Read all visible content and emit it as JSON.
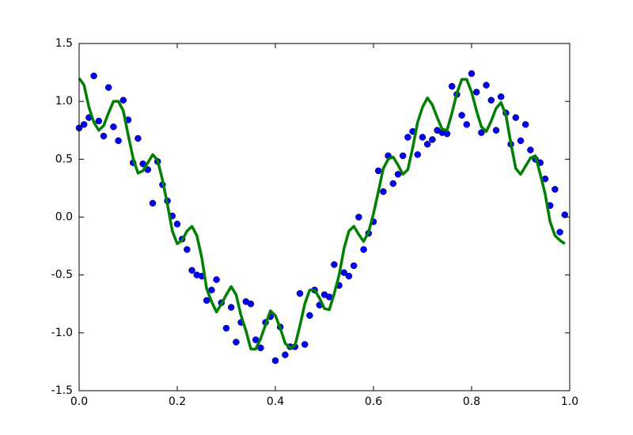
{
  "chart_data": {
    "type": "scatter",
    "x": [
      0,
      0.01,
      0.02,
      0.03,
      0.04,
      0.05,
      0.06,
      0.07,
      0.08,
      0.09,
      0.1,
      0.11,
      0.12,
      0.13,
      0.14,
      0.15,
      0.16,
      0.17,
      0.18,
      0.19,
      0.2,
      0.21,
      0.22,
      0.23,
      0.24,
      0.25,
      0.26,
      0.27,
      0.28,
      0.29,
      0.3,
      0.31,
      0.32,
      0.33,
      0.34,
      0.35,
      0.36,
      0.37,
      0.38,
      0.39,
      0.4,
      0.41,
      0.42,
      0.43,
      0.44,
      0.45,
      0.46,
      0.47,
      0.48,
      0.49,
      0.5,
      0.51,
      0.52,
      0.53,
      0.54,
      0.55,
      0.56,
      0.57,
      0.58,
      0.59,
      0.6,
      0.61,
      0.62,
      0.63,
      0.64,
      0.65,
      0.66,
      0.67,
      0.68,
      0.69,
      0.7,
      0.71,
      0.72,
      0.73,
      0.74,
      0.75,
      0.76,
      0.77,
      0.78,
      0.79,
      0.8,
      0.81,
      0.82,
      0.83,
      0.84,
      0.85,
      0.86,
      0.87,
      0.88,
      0.89,
      0.9,
      0.91,
      0.92,
      0.93,
      0.94,
      0.95,
      0.96,
      0.97,
      0.98,
      0.99
    ],
    "series": [
      {
        "type": "scatter",
        "color": "#0000ff",
        "values": [
          0.77,
          0.8,
          0.86,
          1.22,
          0.83,
          0.7,
          1.12,
          0.78,
          0.66,
          1.01,
          0.84,
          0.47,
          0.68,
          0.46,
          0.41,
          0.12,
          0.48,
          0.28,
          0.14,
          0.01,
          -0.06,
          -0.19,
          -0.28,
          -0.46,
          -0.5,
          -0.51,
          -0.72,
          -0.63,
          -0.54,
          -0.74,
          -0.96,
          -0.78,
          -1.08,
          -0.91,
          -0.73,
          -0.75,
          -1.06,
          -1.13,
          -0.91,
          -0.86,
          -1.24,
          -0.95,
          -1.19,
          -1.12,
          -1.12,
          -0.66,
          -1.1,
          -0.85,
          -0.63,
          -0.76,
          -0.67,
          -0.69,
          -0.41,
          -0.59,
          -0.48,
          -0.51,
          -0.42,
          0.0,
          -0.28,
          -0.14,
          -0.04,
          0.4,
          0.22,
          0.53,
          0.29,
          0.37,
          0.53,
          0.69,
          0.74,
          0.54,
          0.69,
          0.63,
          0.67,
          0.75,
          0.73,
          0.72,
          1.13,
          1.06,
          0.88,
          0.8,
          1.24,
          1.08,
          0.73,
          1.14,
          1.01,
          0.75,
          1.04,
          0.9,
          0.63,
          0.86,
          0.66,
          0.8,
          0.58,
          0.5,
          0.47,
          0.33,
          0.1,
          0.24,
          -0.13,
          0.02
        ]
      },
      {
        "type": "line",
        "color": "#008000",
        "values": [
          1.2,
          1.14,
          0.95,
          0.82,
          0.75,
          0.79,
          0.9,
          1.0,
          1.0,
          0.92,
          0.71,
          0.51,
          0.38,
          0.4,
          0.47,
          0.54,
          0.49,
          0.32,
          0.11,
          -0.12,
          -0.23,
          -0.2,
          -0.12,
          -0.08,
          -0.16,
          -0.35,
          -0.62,
          -0.73,
          -0.82,
          -0.75,
          -0.67,
          -0.6,
          -0.67,
          -0.85,
          -0.98,
          -1.14,
          -1.14,
          -1.05,
          -0.93,
          -0.81,
          -0.85,
          -0.96,
          -1.09,
          -1.13,
          -1.11,
          -0.94,
          -0.75,
          -0.63,
          -0.63,
          -0.7,
          -0.79,
          -0.8,
          -0.66,
          -0.5,
          -0.27,
          -0.12,
          -0.08,
          -0.15,
          -0.21,
          -0.13,
          0.03,
          0.22,
          0.42,
          0.5,
          0.52,
          0.45,
          0.37,
          0.41,
          0.6,
          0.82,
          0.95,
          1.03,
          0.97,
          0.86,
          0.76,
          0.75,
          0.9,
          1.07,
          1.19,
          1.19,
          1.08,
          0.92,
          0.78,
          0.74,
          0.83,
          0.94,
          0.99,
          0.88,
          0.64,
          0.42,
          0.37,
          0.44,
          0.51,
          0.53,
          0.37,
          0.2,
          -0.04,
          -0.16,
          -0.2,
          -0.23
        ]
      }
    ],
    "xlim": [
      0,
      1
    ],
    "xticks": [
      {
        "value": 0,
        "label": "0.0"
      },
      {
        "value": 0.2,
        "label": "0.2"
      },
      {
        "value": 0.4,
        "label": "0.4"
      },
      {
        "value": 0.6,
        "label": "0.6"
      },
      {
        "value": 0.8,
        "label": "0.8"
      },
      {
        "value": 1,
        "label": "1.0"
      }
    ],
    "ylim": [
      -1.5,
      1.5
    ],
    "yticks": [
      -1.5,
      {
        "value": -1,
        "label": "-1.0"
      },
      -0.5,
      {
        "value": 0,
        "label": "0.0"
      },
      0.5,
      {
        "value": 1,
        "label": "1.0"
      },
      1.5
    ],
    "grid": false
  }
}
